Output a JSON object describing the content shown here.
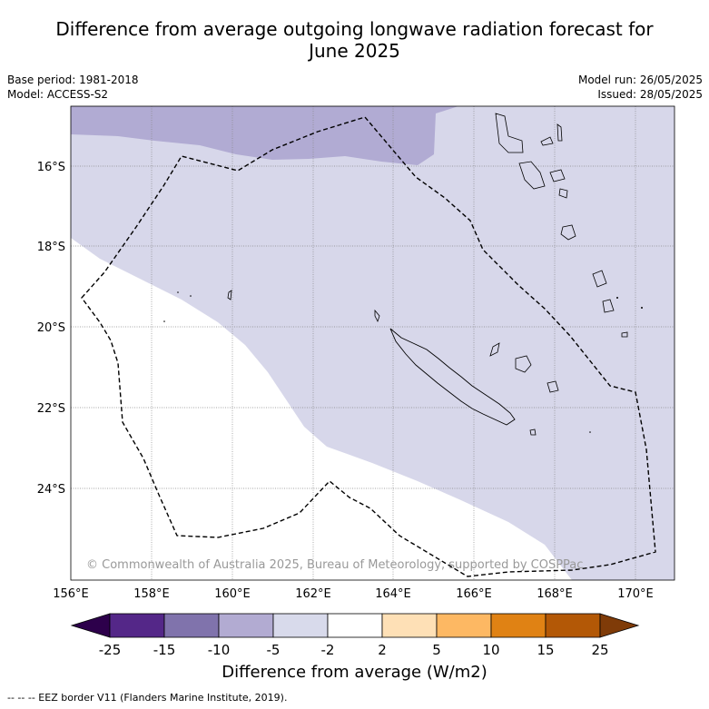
{
  "title_line1": "Difference from average outgoing longwave radiation forecast for",
  "title_line2": "June 2025",
  "meta": {
    "base_period": "Base period: 1981-2018",
    "model": "Model: ACCESS-S2",
    "model_run": "Model run: 26/05/2025",
    "issued": "Issued: 28/05/2025"
  },
  "map": {
    "lon_ticks": [
      "156°E",
      "158°E",
      "160°E",
      "162°E",
      "164°E",
      "166°E",
      "168°E",
      "170°E"
    ],
    "lat_ticks": [
      "16°S",
      "18°S",
      "20°S",
      "22°S",
      "24°S"
    ],
    "copyright": "© Commonwealth of Australia 2025, Bureau of Meteorology, supported by COSPPac",
    "colors": {
      "band_neg10_neg5": "#b1abd3",
      "band_neg5_neg2": "#d7d7ea",
      "band_neg2_2": "#ffffff",
      "eez_line": "#000000",
      "coast": "#000000"
    }
  },
  "colorbar": {
    "ticks": [
      "-25",
      "-15",
      "-10",
      "-5",
      "-2",
      "2",
      "5",
      "10",
      "15",
      "25"
    ],
    "colors": [
      "#2d004b",
      "#542788",
      "#8073ac",
      "#b2abd2",
      "#d8daeb",
      "#ffffff",
      "#fee0b6",
      "#fdb863",
      "#e08214",
      "#b35806",
      "#7f3b08"
    ],
    "title": "Difference from average (W/m2)"
  },
  "footnote": "-- -- -- EEZ border V11 (Flanders Marine Institute, 2019)."
}
